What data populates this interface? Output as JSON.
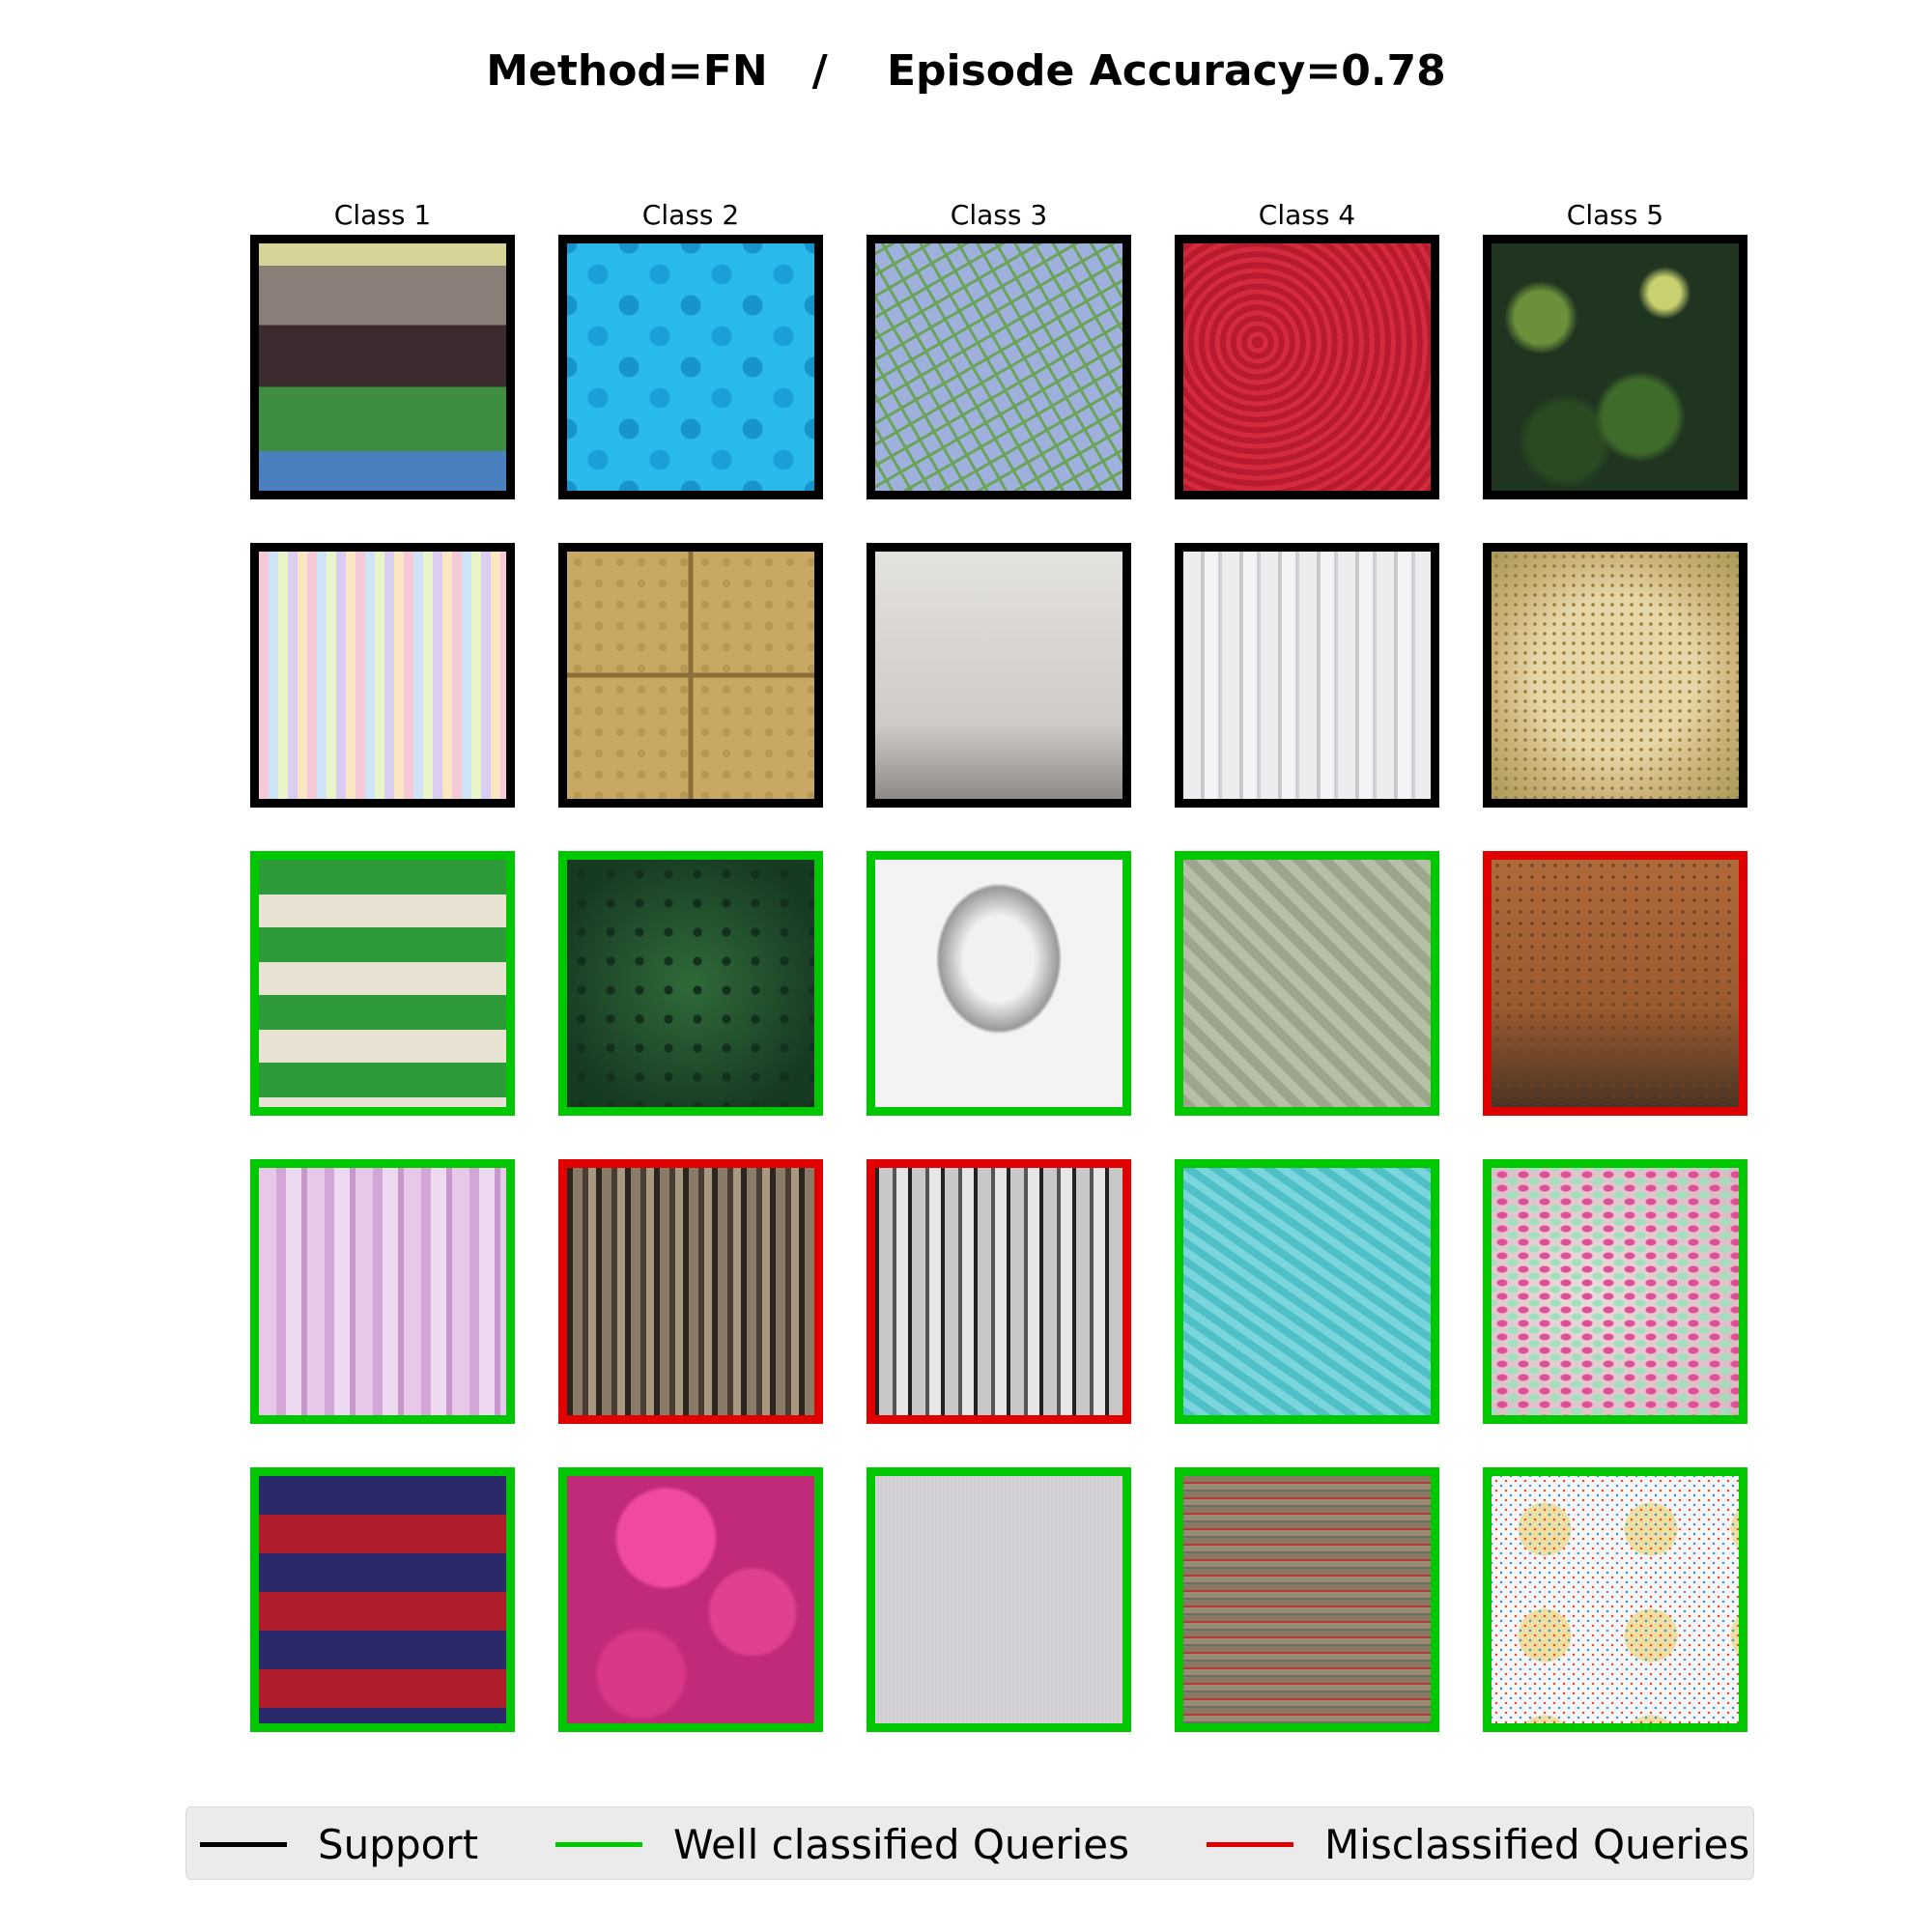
{
  "title": "Method=FN   /    Episode Accuracy=0.78",
  "columns": [
    "Class 1",
    "Class 2",
    "Class 3",
    "Class 4",
    "Class 5"
  ],
  "colors": {
    "support": "#000000",
    "well": "#00c800",
    "mis": "#e00000"
  },
  "rows": [
    [
      "support",
      "support",
      "support",
      "support",
      "support"
    ],
    [
      "support",
      "support",
      "support",
      "support",
      "support"
    ],
    [
      "well",
      "well",
      "well",
      "well",
      "mis"
    ],
    [
      "well",
      "mis",
      "mis",
      "well",
      "well"
    ],
    [
      "well",
      "well",
      "well",
      "well",
      "well"
    ]
  ],
  "textures": [
    [
      "stripes-brown-green",
      "bubbles-cyan",
      "grid-green",
      "knit-red",
      "foliage"
    ],
    [
      "pastel-stripes",
      "tactile-tiles",
      "linen-white",
      "cable-knit-white",
      "sprinkled-cake"
    ],
    [
      "stripes-green-white",
      "moss-green",
      "sketch-portrait",
      "knit-sage",
      "rust-granite"
    ],
    [
      "stripes-lilac",
      "bark",
      "sketch-figures",
      "knit-aqua",
      "donut-sprinkles"
    ],
    [
      "stripes-navy-red",
      "bumps-pink",
      "linen-grey",
      "woven-stripes",
      "sprinkle-cookies"
    ]
  ],
  "legend": [
    {
      "label": "Support",
      "color": "#000000"
    },
    {
      "label": "Well classified Queries",
      "color": "#00c800"
    },
    {
      "label": "Misclassified Queries",
      "color": "#e00000"
    }
  ]
}
